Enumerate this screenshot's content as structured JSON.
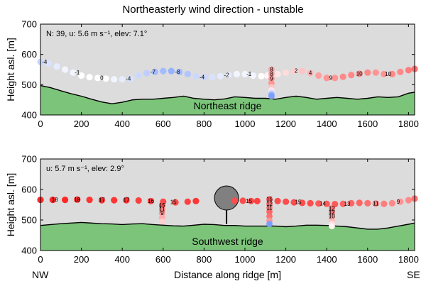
{
  "title": "Northeasterly wind direction - unstable",
  "corner_left": "NW",
  "corner_right": "SE",
  "chart_data": [
    {
      "type": "scatter",
      "panel": "top",
      "ylabel": "Height asl. [m]",
      "xlabel": "",
      "xlim": [
        0,
        1830
      ],
      "ylim": [
        400,
        700
      ],
      "xticks": [
        0,
        200,
        400,
        600,
        800,
        1000,
        1200,
        1400,
        1600,
        1800
      ],
      "yticks": [
        400,
        500,
        600,
        700
      ],
      "info_text": "N: 39, u: 5.6 m s⁻¹, elev: 7.1°",
      "ridge_label": "Northeast ridge",
      "terrain": [
        [
          0,
          497
        ],
        [
          50,
          490
        ],
        [
          100,
          480
        ],
        [
          150,
          470
        ],
        [
          200,
          462
        ],
        [
          250,
          452
        ],
        [
          300,
          443
        ],
        [
          350,
          437
        ],
        [
          400,
          442
        ],
        [
          450,
          450
        ],
        [
          500,
          452
        ],
        [
          550,
          452
        ],
        [
          600,
          455
        ],
        [
          650,
          458
        ],
        [
          700,
          462
        ],
        [
          750,
          455
        ],
        [
          800,
          452
        ],
        [
          850,
          450
        ],
        [
          900,
          453
        ],
        [
          950,
          460
        ],
        [
          1000,
          458
        ],
        [
          1050,
          455
        ],
        [
          1100,
          455
        ],
        [
          1150,
          452
        ],
        [
          1200,
          458
        ],
        [
          1250,
          462
        ],
        [
          1300,
          458
        ],
        [
          1350,
          452
        ],
        [
          1400,
          455
        ],
        [
          1450,
          458
        ],
        [
          1500,
          455
        ],
        [
          1550,
          452
        ],
        [
          1600,
          455
        ],
        [
          1650,
          460
        ],
        [
          1700,
          458
        ],
        [
          1750,
          460
        ],
        [
          1800,
          472
        ],
        [
          1830,
          475
        ]
      ],
      "track": [
        [
          0,
          575
        ],
        [
          40,
          570
        ],
        [
          80,
          560
        ],
        [
          120,
          550
        ],
        [
          160,
          540
        ],
        [
          200,
          530
        ],
        [
          240,
          525
        ],
        [
          280,
          522
        ],
        [
          320,
          520
        ],
        [
          360,
          518
        ],
        [
          400,
          518
        ],
        [
          440,
          520
        ],
        [
          480,
          530
        ],
        [
          520,
          538
        ],
        [
          560,
          542
        ],
        [
          600,
          545
        ],
        [
          640,
          545
        ],
        [
          680,
          542
        ],
        [
          720,
          535
        ],
        [
          760,
          528
        ],
        [
          800,
          525
        ],
        [
          840,
          525
        ],
        [
          880,
          528
        ],
        [
          920,
          532
        ],
        [
          960,
          535
        ],
        [
          1000,
          535
        ],
        [
          1040,
          530
        ],
        [
          1080,
          528
        ],
        [
          1110,
          530
        ],
        [
          1130,
          530
        ],
        [
          1160,
          535
        ],
        [
          1200,
          540
        ],
        [
          1240,
          545
        ],
        [
          1280,
          545
        ],
        [
          1320,
          538
        ],
        [
          1360,
          530
        ],
        [
          1400,
          522
        ],
        [
          1440,
          522
        ],
        [
          1480,
          526
        ],
        [
          1520,
          532
        ],
        [
          1560,
          536
        ],
        [
          1600,
          540
        ],
        [
          1640,
          540
        ],
        [
          1680,
          535
        ],
        [
          1720,
          535
        ],
        [
          1760,
          542
        ],
        [
          1800,
          548
        ],
        [
          1830,
          552
        ]
      ],
      "track_values": [
        -4,
        -3,
        -2,
        -1,
        -1,
        0,
        0,
        0,
        0,
        -1,
        -2,
        -3,
        -4,
        -5,
        -7,
        -7,
        -8,
        -7,
        -6,
        -4,
        -4,
        -3,
        -2,
        -2,
        -1,
        -1,
        -1,
        0,
        1,
        2,
        2,
        3,
        4,
        5,
        6,
        8,
        9,
        9,
        10,
        10,
        10,
        10,
        9,
        9,
        10,
        10,
        11,
        12
      ],
      "labels": [
        [
          20,
          -4
        ],
        [
          180,
          -1
        ],
        [
          300,
          0
        ],
        [
          430,
          -4
        ],
        [
          550,
          -7
        ],
        [
          670,
          -8
        ],
        [
          790,
          -4
        ],
        [
          910,
          -2
        ],
        [
          1020,
          -1
        ],
        [
          1250,
          2
        ],
        [
          1320,
          4
        ],
        [
          1420,
          9
        ],
        [
          1560,
          10
        ],
        [
          1700,
          10
        ]
      ],
      "profile": {
        "x": 1130,
        "points": [
          [
            550,
            8
          ],
          [
            535,
            8
          ],
          [
            520,
            9
          ],
          [
            505,
            9
          ],
          [
            492,
            5
          ],
          [
            482,
            2
          ],
          [
            475,
            -3
          ],
          [
            468,
            -8
          ],
          [
            462,
            -10
          ]
        ]
      }
    },
    {
      "type": "scatter",
      "panel": "bottom",
      "ylabel": "Height asl. [m]",
      "xlabel": "Distance along ridge [m]",
      "xlim": [
        0,
        1830
      ],
      "ylim": [
        400,
        700
      ],
      "xticks": [
        0,
        200,
        400,
        600,
        800,
        1000,
        1200,
        1400,
        1600,
        1800
      ],
      "yticks": [
        400,
        500,
        600,
        700
      ],
      "info_text": "u: 5.7 m s⁻¹, elev: 2.9°",
      "ridge_label": "Southwest ridge",
      "terrain": [
        [
          0,
          482
        ],
        [
          50,
          485
        ],
        [
          100,
          488
        ],
        [
          150,
          490
        ],
        [
          200,
          492
        ],
        [
          250,
          490
        ],
        [
          300,
          488
        ],
        [
          350,
          487
        ],
        [
          400,
          485
        ],
        [
          450,
          487
        ],
        [
          500,
          488
        ],
        [
          550,
          485
        ],
        [
          600,
          483
        ],
        [
          650,
          481
        ],
        [
          700,
          480
        ],
        [
          750,
          483
        ],
        [
          800,
          486
        ],
        [
          850,
          485
        ],
        [
          900,
          482
        ],
        [
          950,
          482
        ],
        [
          1000,
          480
        ],
        [
          1050,
          480
        ],
        [
          1100,
          480
        ],
        [
          1150,
          480
        ],
        [
          1200,
          478
        ],
        [
          1250,
          480
        ],
        [
          1300,
          483
        ],
        [
          1350,
          483
        ],
        [
          1400,
          482
        ],
        [
          1450,
          480
        ],
        [
          1500,
          478
        ],
        [
          1550,
          474
        ],
        [
          1600,
          470
        ],
        [
          1650,
          470
        ],
        [
          1700,
          474
        ],
        [
          1750,
          480
        ],
        [
          1800,
          486
        ],
        [
          1830,
          490
        ]
      ],
      "track_segments": [
        {
          "points": [
            [
              0,
              566
            ],
            [
              60,
              566
            ],
            [
              120,
              566
            ],
            [
              180,
              567
            ],
            [
              240,
              566
            ],
            [
              300,
              565
            ],
            [
              360,
              565
            ],
            [
              420,
              565
            ],
            [
              480,
              564
            ],
            [
              540,
              562
            ],
            [
              600,
              560
            ],
            [
              660,
              558
            ],
            [
              720,
              560
            ],
            [
              760,
              562
            ]
          ],
          "values": [
            18,
            18,
            18,
            18,
            17,
            17,
            17,
            17,
            16,
            16,
            15,
            15,
            16,
            17
          ]
        },
        {
          "points": [
            [
              950,
              563
            ],
            [
              990,
              563
            ],
            [
              1030,
              562
            ],
            [
              1060,
              562
            ]
          ],
          "values": [
            15,
            15,
            15,
            16
          ]
        },
        {
          "points": [
            [
              1160,
              562
            ],
            [
              1200,
              560
            ],
            [
              1240,
              558
            ],
            [
              1280,
              556
            ],
            [
              1320,
              555
            ],
            [
              1360,
              554
            ],
            [
              1400,
              553
            ],
            [
              1440,
              552
            ],
            [
              1480,
              553
            ],
            [
              1520,
              555
            ],
            [
              1560,
              556
            ],
            [
              1600,
              555
            ],
            [
              1640,
              554
            ],
            [
              1680,
              553
            ],
            [
              1720,
              555
            ],
            [
              1760,
              560
            ],
            [
              1800,
              565
            ],
            [
              1830,
              570
            ]
          ],
          "values": [
            15,
            15,
            15,
            15,
            15,
            14,
            14,
            14,
            13,
            13,
            13,
            12,
            11,
            11,
            10,
            9,
            10,
            12
          ]
        }
      ],
      "labels": [
        [
          70,
          18
        ],
        [
          180,
          18
        ],
        [
          300,
          17
        ],
        [
          420,
          17
        ],
        [
          540,
          16
        ],
        [
          650,
          15
        ],
        [
          1020,
          15
        ],
        [
          1260,
          15
        ],
        [
          1380,
          14
        ],
        [
          1500,
          13
        ],
        [
          1640,
          11
        ],
        [
          1750,
          9
        ]
      ],
      "profiles": [
        {
          "x": 595,
          "points": [
            [
              548,
              15
            ],
            [
              535,
              11
            ],
            [
              522,
              9
            ],
            [
              508,
              7
            ],
            [
              495,
              4
            ]
          ]
        },
        {
          "x": 1120,
          "points": [
            [
              568,
              15
            ],
            [
              553,
              12
            ],
            [
              540,
              11
            ],
            [
              527,
              13
            ],
            [
              512,
              12
            ],
            [
              498,
              9
            ],
            [
              487,
              -10
            ]
          ]
        },
        {
          "x": 1425,
          "points": [
            [
              538,
              12
            ],
            [
              525,
              12
            ],
            [
              512,
              10
            ],
            [
              498,
              6
            ],
            [
              488,
              3
            ],
            [
              480,
              1
            ]
          ]
        }
      ],
      "turbine": {
        "x": 910,
        "hub": 572,
        "base": 487
      }
    }
  ]
}
